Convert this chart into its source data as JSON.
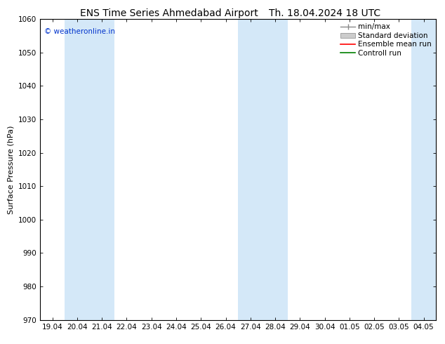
{
  "title_left": "ENS Time Series Ahmedabad Airport",
  "title_right": "Th. 18.04.2024 18 UTC",
  "ylabel": "Surface Pressure (hPa)",
  "ylim": [
    970,
    1060
  ],
  "yticks": [
    970,
    980,
    990,
    1000,
    1010,
    1020,
    1030,
    1040,
    1050,
    1060
  ],
  "x_start": "2024-04-19",
  "x_end": "2024-05-04",
  "xtick_labels": [
    "19.04",
    "20.04",
    "21.04",
    "22.04",
    "23.04",
    "24.04",
    "25.04",
    "26.04",
    "27.04",
    "28.04",
    "29.04",
    "30.04",
    "01.05",
    "02.05",
    "03.05",
    "04.05"
  ],
  "weekend_bands": [
    {
      "start": "2024-04-20",
      "end": "2024-04-22"
    },
    {
      "start": "2024-04-27",
      "end": "2024-04-29"
    },
    {
      "start": "2024-05-04",
      "end": "2024-05-06"
    }
  ],
  "band_color": "#d4e8f8",
  "background_color": "#ffffff",
  "watermark_text": "© weatheronline.in",
  "watermark_color": "#0033cc",
  "legend_entries": [
    {
      "label": "min/max",
      "color": "#aaaaaa",
      "type": "errorbar"
    },
    {
      "label": "Standard deviation",
      "color": "#cccccc",
      "type": "rect"
    },
    {
      "label": "Ensemble mean run",
      "color": "#ff0000",
      "type": "line"
    },
    {
      "label": "Controll run",
      "color": "#008000",
      "type": "line"
    }
  ],
  "title_fontsize": 10,
  "axis_label_fontsize": 8,
  "tick_fontsize": 7.5,
  "legend_fontsize": 7.5
}
